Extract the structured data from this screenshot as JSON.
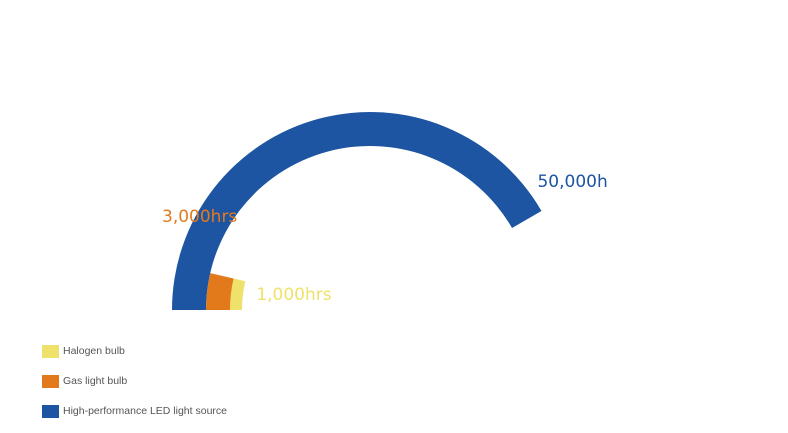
{
  "chart_data": {
    "type": "radial-bar",
    "unit": "hours",
    "series": [
      {
        "name": "Halogen bulb",
        "value": 1000,
        "label": "1,000hrs",
        "color": "#EEE26A"
      },
      {
        "name": "Gas light bulb",
        "value": 3000,
        "label": "3,000hrs",
        "color": "#E27A1C"
      },
      {
        "name": "High-performance LED light source",
        "value": 50000,
        "label": "50,000h",
        "color": "#1D55A2"
      }
    ],
    "legend_position": "bottom-left"
  }
}
